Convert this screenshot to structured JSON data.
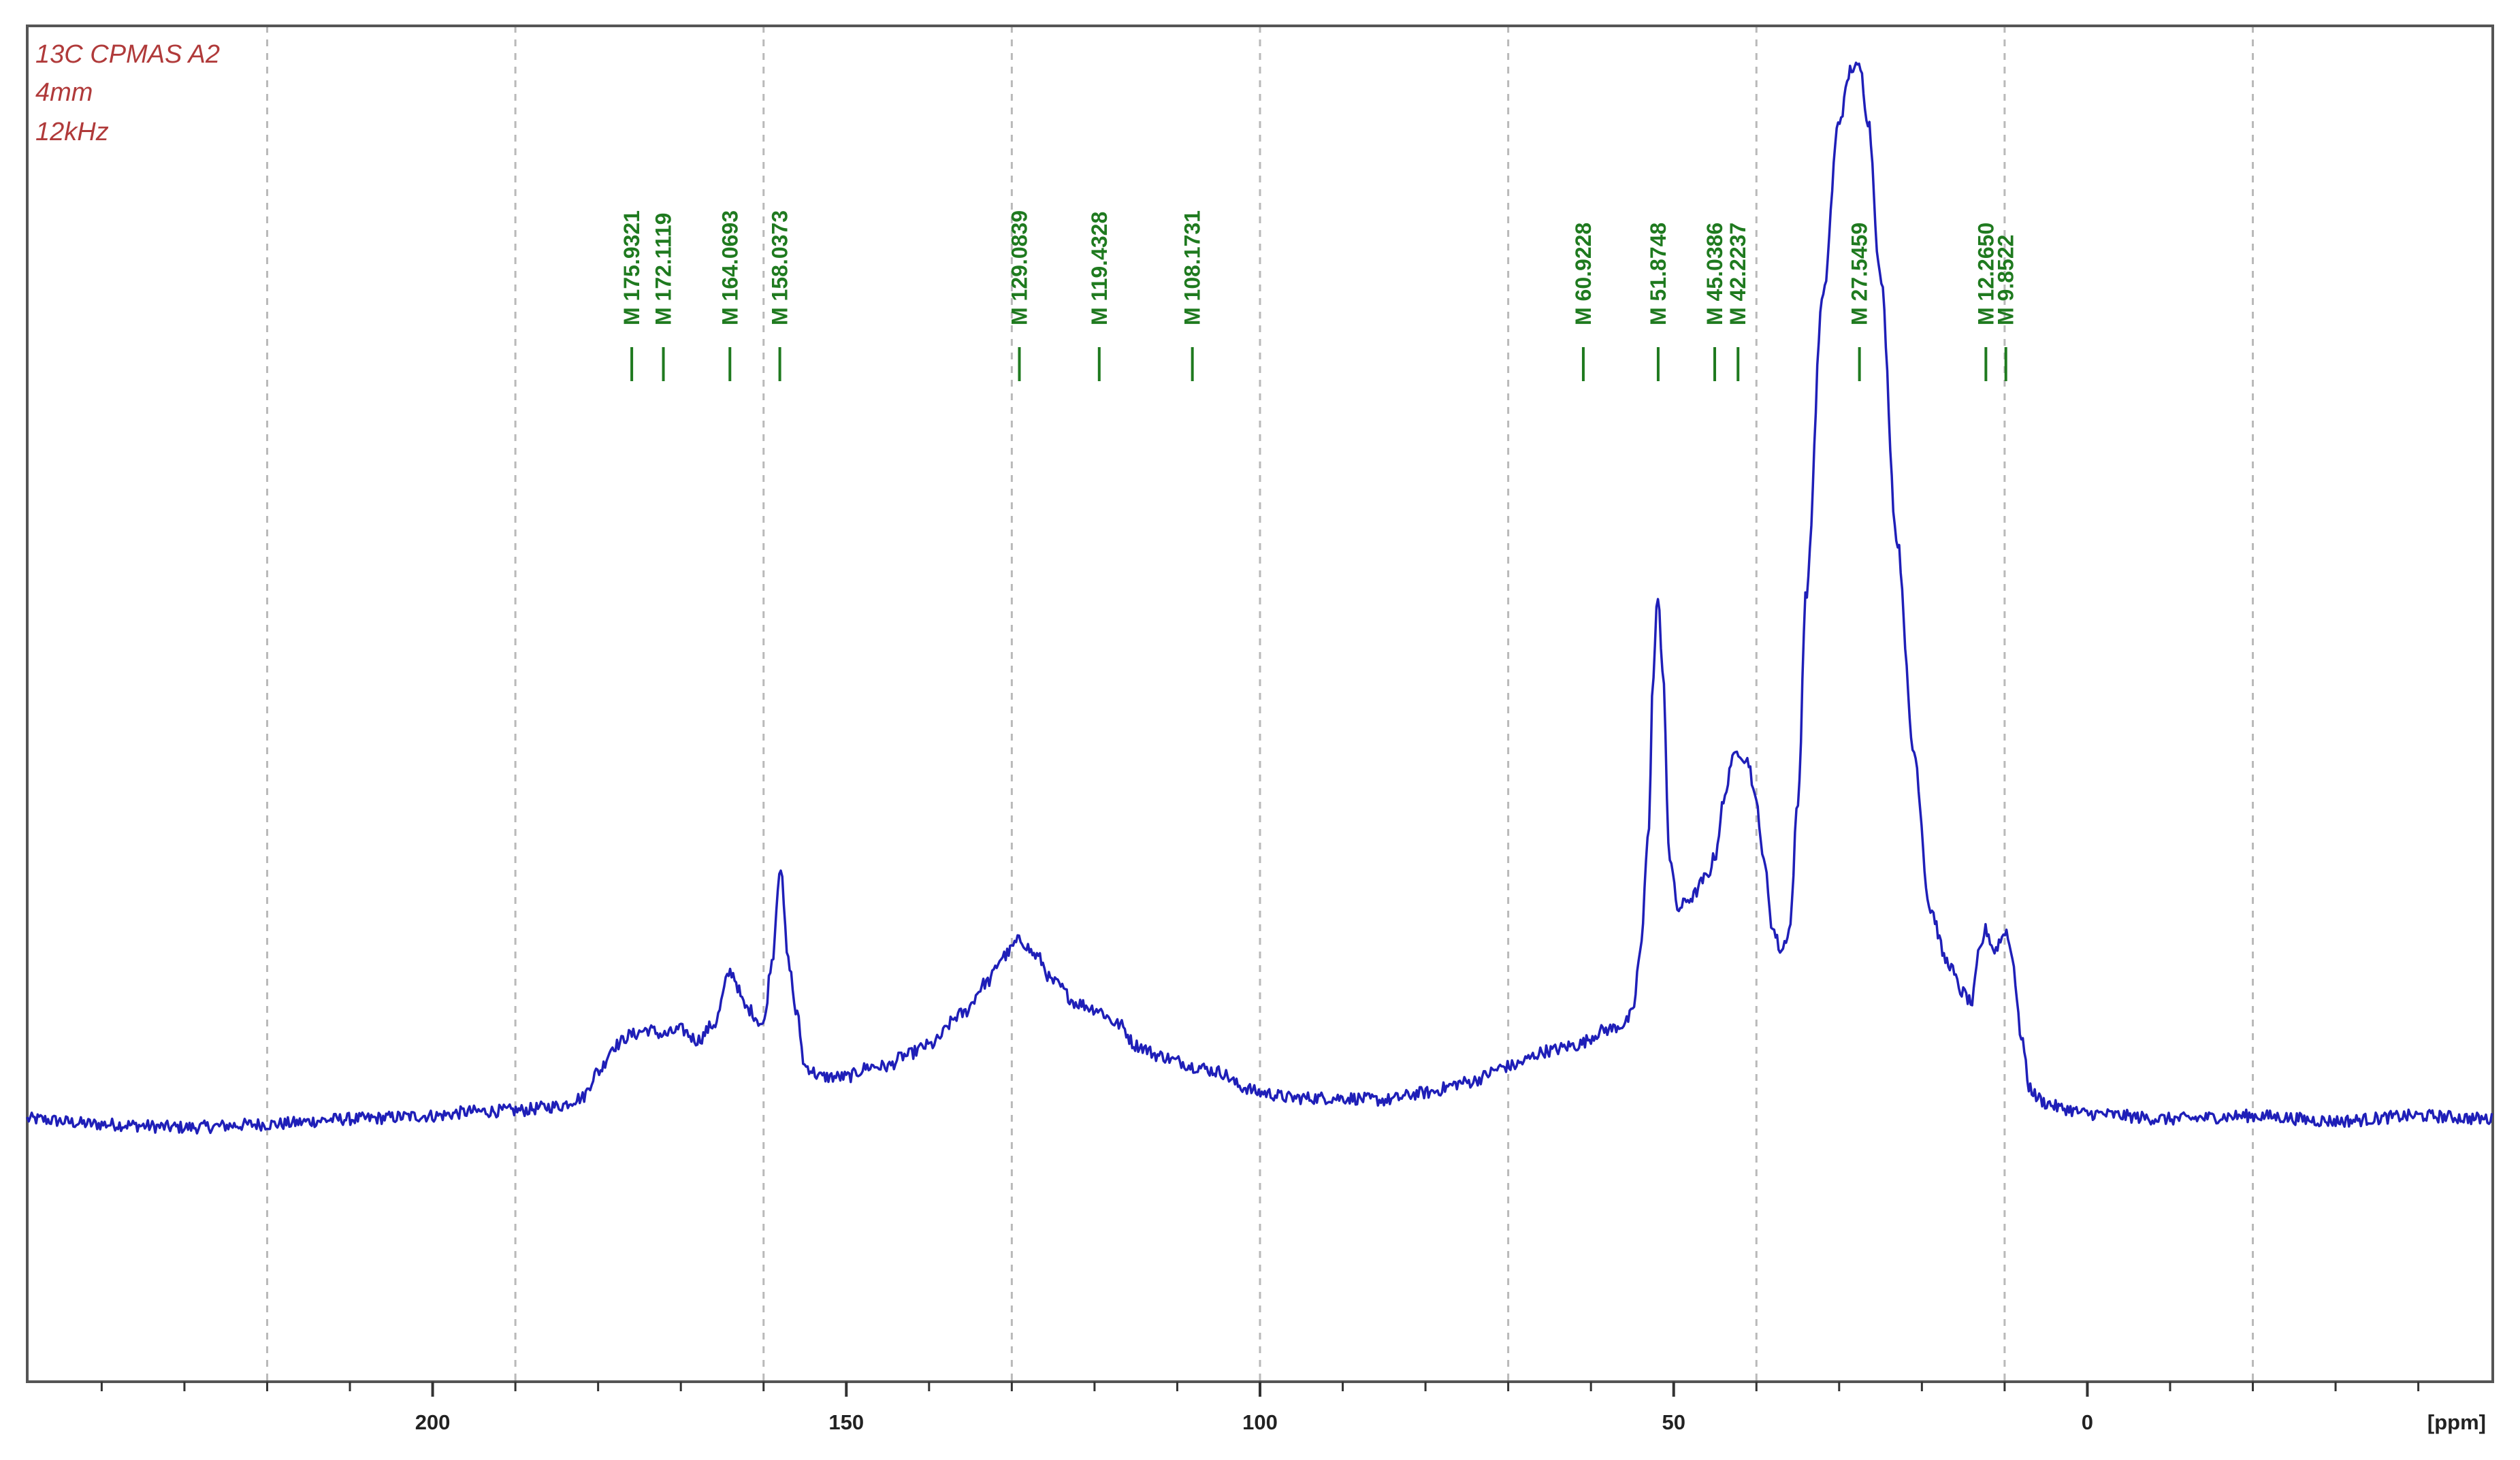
{
  "info": {
    "lines": [
      "13C CPMAS  A2",
      "4mm",
      "12kHz"
    ]
  },
  "colors": {
    "trace": "#1f1fb8",
    "peak_labels": "#1f7a1f",
    "info_text": "#b03a3a",
    "grid": "#b9b9b9"
  },
  "chart_data": {
    "type": "line",
    "xlabel": "[ppm]",
    "x_reversed": true,
    "xlim": [
      249,
      -49
    ],
    "ylim": [
      -0.25,
      1.04
    ],
    "x_ticks": [
      200,
      150,
      100,
      50,
      0
    ],
    "x_tick_labels": [
      "200",
      "150",
      "100",
      "50",
      "0"
    ],
    "grid": "vertical dashed lines",
    "peak_labels": [
      {
        "ppm": 175.9321,
        "label": "M 175.9321"
      },
      {
        "ppm": 172.1119,
        "label": "M 172.1119"
      },
      {
        "ppm": 164.0693,
        "label": "M 164.0693"
      },
      {
        "ppm": 158.0373,
        "label": "M 158.0373"
      },
      {
        "ppm": 129.0839,
        "label": "M 129.0839"
      },
      {
        "ppm": 119.4328,
        "label": "M 119.4328"
      },
      {
        "ppm": 108.1731,
        "label": "M 108.1731"
      },
      {
        "ppm": 60.9228,
        "label": "M 60.9228"
      },
      {
        "ppm": 51.8748,
        "label": "M 51.8748"
      },
      {
        "ppm": 45.0386,
        "label": "M 45.0386"
      },
      {
        "ppm": 42.2237,
        "label": "M 42.2237"
      },
      {
        "ppm": 27.5459,
        "label": "M 27.5459"
      },
      {
        "ppm": 12.265,
        "label": "M 12.2650"
      },
      {
        "ppm": 9.8522,
        "label": "M 9.8522"
      }
    ],
    "series": [
      {
        "x": [
          249,
          240,
          230,
          220,
          210,
          200,
          195,
          190,
          185,
          182,
          180,
          178,
          176,
          174,
          172,
          170,
          168,
          166,
          164,
          162,
          160,
          159,
          158,
          157,
          156,
          155,
          153,
          150,
          147,
          145,
          143,
          140,
          136,
          133,
          131,
          129,
          127,
          125,
          122,
          120,
          117,
          115,
          112,
          110,
          108,
          105,
          102,
          100,
          96,
          93,
          90,
          85,
          80,
          75,
          70,
          65,
          62,
          58,
          56,
          55,
          54,
          53,
          52.5,
          51.9,
          51.3,
          50.5,
          49.5,
          48,
          46,
          45,
          44,
          43,
          42.2,
          41,
          40,
          39,
          38,
          37,
          36,
          35,
          34,
          32,
          30,
          28.5,
          27.5,
          26.5,
          25,
          23,
          21,
          19,
          17,
          15,
          14,
          13,
          12.3,
          11.2,
          10.5,
          9.9,
          9.2,
          8,
          7,
          6,
          5,
          3,
          0,
          -10,
          -20,
          -30,
          -40,
          -49
        ],
        "y": [
          0.0,
          -0.005,
          -0.008,
          -0.005,
          0.0,
          0.003,
          0.007,
          0.008,
          0.012,
          0.02,
          0.045,
          0.07,
          0.08,
          0.085,
          0.08,
          0.085,
          0.075,
          0.09,
          0.14,
          0.105,
          0.09,
          0.15,
          0.24,
          0.15,
          0.1,
          0.05,
          0.04,
          0.04,
          0.05,
          0.05,
          0.06,
          0.07,
          0.1,
          0.13,
          0.155,
          0.17,
          0.155,
          0.13,
          0.11,
          0.105,
          0.09,
          0.07,
          0.06,
          0.055,
          0.05,
          0.045,
          0.03,
          0.025,
          0.02,
          0.02,
          0.02,
          0.018,
          0.025,
          0.035,
          0.05,
          0.065,
          0.07,
          0.085,
          0.09,
          0.1,
          0.16,
          0.28,
          0.42,
          0.5,
          0.42,
          0.25,
          0.2,
          0.21,
          0.23,
          0.25,
          0.3,
          0.34,
          0.35,
          0.34,
          0.3,
          0.24,
          0.18,
          0.16,
          0.18,
          0.3,
          0.5,
          0.78,
          0.95,
          1.0,
          1.0,
          0.95,
          0.8,
          0.55,
          0.35,
          0.2,
          0.15,
          0.12,
          0.11,
          0.16,
          0.18,
          0.16,
          0.17,
          0.18,
          0.16,
          0.08,
          0.03,
          0.02,
          0.015,
          0.01,
          0.005,
          0.0,
          0.003,
          -0.002,
          0.003,
          0.0
        ]
      }
    ]
  }
}
